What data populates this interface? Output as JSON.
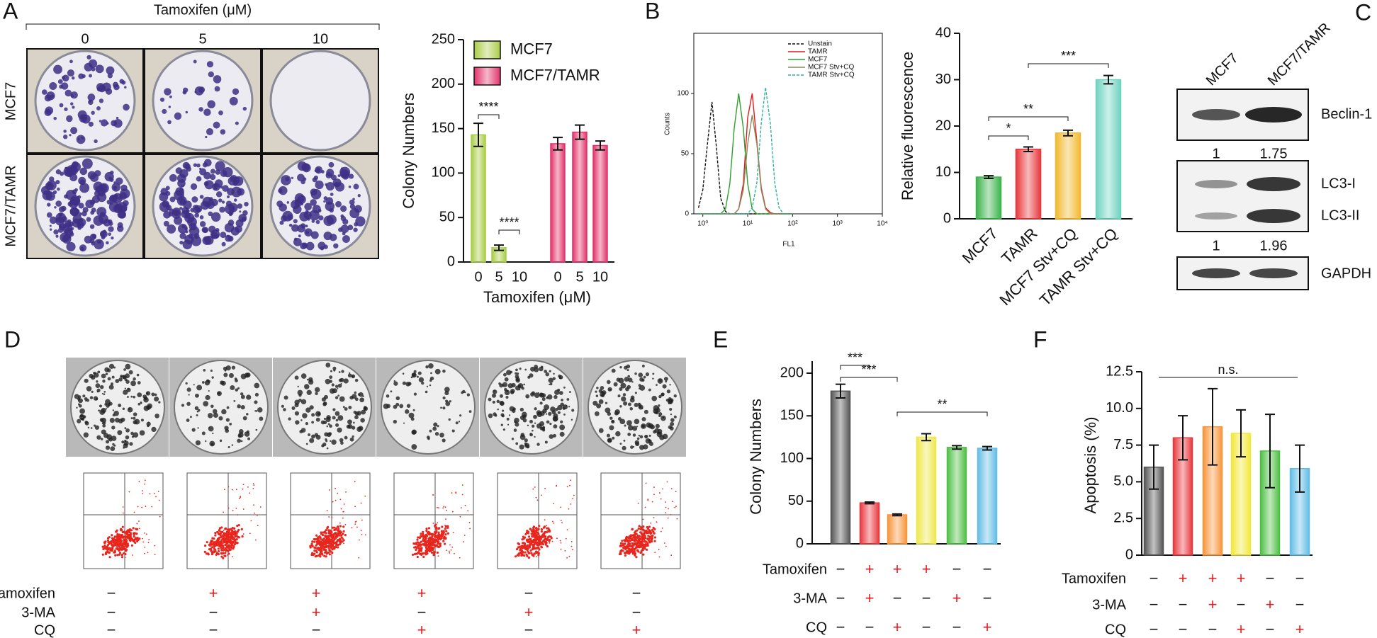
{
  "figure": {
    "panel_labels": [
      "A",
      "B",
      "C",
      "D",
      "E",
      "F"
    ],
    "panel_a": {
      "header": "Tamoxifen (μM)",
      "columns": [
        "0",
        "5",
        "10"
      ],
      "rows": [
        "MCF7",
        "MCF7/TAMR"
      ]
    },
    "panel_c": {
      "columns": [
        "MCF7",
        "MCF7/TAMR"
      ],
      "bands": [
        "Beclin-1",
        "LC3-I",
        "LC3-II",
        "GAPDH"
      ],
      "ratios": [
        [
          "1",
          "1.75"
        ],
        [
          "1",
          "1.96"
        ]
      ]
    },
    "sign_colors": {
      "+": "#e41a1c",
      "−": "#111111"
    },
    "panel_d": {
      "treatments": [
        {
          "name": "Tamoxifen",
          "signs": [
            "−",
            "+",
            "+",
            "+",
            "−",
            "−"
          ]
        },
        {
          "name": "3-MA",
          "signs": [
            "−",
            "−",
            "+",
            "−",
            "+",
            "−"
          ]
        },
        {
          "name": "CQ",
          "signs": [
            "−",
            "−",
            "−",
            "+",
            "−",
            "+"
          ]
        }
      ]
    },
    "panel_e": {
      "treatments": [
        {
          "name": "Tamoxifen",
          "signs": [
            "−",
            "+",
            "+",
            "+",
            "−",
            "−"
          ]
        },
        {
          "name": "3-MA",
          "signs": [
            "−",
            "+",
            "−",
            "−",
            "+",
            "−"
          ]
        },
        {
          "name": "CQ",
          "signs": [
            "−",
            "−",
            "+",
            "−",
            "−",
            "+"
          ]
        }
      ]
    },
    "panel_f": {
      "treatments": [
        {
          "name": "Tamoxifen",
          "signs": [
            "−",
            "+",
            "+",
            "+",
            "−",
            "−"
          ]
        },
        {
          "name": "3-MA",
          "signs": [
            "−",
            "−",
            "+",
            "−",
            "+",
            "−"
          ]
        },
        {
          "name": "CQ",
          "signs": [
            "−",
            "−",
            "−",
            "+",
            "−",
            "+"
          ]
        }
      ]
    }
  },
  "chart_data": [
    {
      "type": "bar",
      "ylabel": "Colony Numbers",
      "xlabel": "Tamoxifen (μM)",
      "categories": [
        "0",
        "5",
        "10"
      ],
      "series": [
        {
          "name": "MCF7",
          "color": "#a9cc45",
          "values": [
            143,
            16,
            0
          ],
          "errors": [
            13,
            3,
            0
          ]
        },
        {
          "name": "MCF7/TAMR",
          "color": "#e2336b",
          "values": [
            133,
            146,
            131
          ],
          "errors": [
            7,
            8,
            5
          ]
        }
      ],
      "ylim": [
        0,
        250
      ],
      "yticks": [
        0,
        50,
        100,
        150,
        200,
        250
      ],
      "legend": "top-left",
      "annotations": [
        {
          "text": "****"
        },
        {
          "text": "****"
        }
      ]
    },
    {
      "type": "line",
      "xlabel": "FL1",
      "ylabel": "Counts",
      "xlog": true,
      "x": [
        0.8,
        1,
        1.25,
        1.6,
        2,
        2.5,
        3.2,
        4,
        5,
        6.3,
        8,
        10,
        12.6,
        16,
        20,
        25,
        32,
        40,
        50,
        63,
        80,
        100
      ],
      "series": [
        {
          "name": "Unstain",
          "color": "#111111",
          "style": "dashed",
          "values": [
            5,
            20,
            56,
            93,
            56,
            13,
            2,
            0,
            0,
            0,
            0,
            0,
            0,
            0,
            0,
            0,
            0,
            0,
            0,
            0,
            0,
            0
          ]
        },
        {
          "name": "TAMR",
          "color": "#e41a1c",
          "style": "solid",
          "values": [
            0,
            0,
            0,
            0,
            0,
            0,
            0,
            0,
            0,
            4,
            25,
            80,
            100,
            60,
            22,
            5,
            1,
            0,
            0,
            0,
            0,
            0
          ]
        },
        {
          "name": "MCF7",
          "color": "#2ca02c",
          "style": "solid",
          "values": [
            0,
            0,
            0,
            0,
            0,
            0,
            4,
            25,
            71,
            100,
            71,
            25,
            4,
            0,
            0,
            0,
            0,
            0,
            0,
            0,
            0,
            0
          ]
        },
        {
          "name": "MCF7 Stv+CQ",
          "color": "#8a8a5a",
          "style": "solid",
          "values": [
            0,
            0,
            0,
            0,
            0,
            0,
            0,
            0,
            0,
            4,
            20,
            58,
            82,
            58,
            20,
            4,
            0,
            0,
            0,
            0,
            0,
            0
          ]
        },
        {
          "name": "TAMR Stv+CQ",
          "color": "#2fb39a",
          "style": "dashed",
          "values": [
            0,
            0,
            0,
            0,
            0,
            0,
            0,
            0,
            0,
            0,
            0,
            0,
            5,
            26,
            75,
            105,
            75,
            26,
            5,
            0,
            0,
            0
          ]
        }
      ],
      "xlim": [
        0.63,
        10000
      ],
      "xticks": [
        {
          "value": 1,
          "label": "10⁰"
        },
        {
          "value": 10,
          "label": "10¹"
        },
        {
          "value": 100,
          "label": "10²"
        },
        {
          "value": 1000,
          "label": "10³"
        },
        {
          "value": 10000,
          "label": "10⁴"
        }
      ],
      "ylim": [
        0,
        150
      ],
      "yticks": [
        0,
        50,
        100
      ],
      "legend": "top-right"
    },
    {
      "type": "bar",
      "ylabel": "Relative fluorescence",
      "categories": [
        "MCF7",
        "TAMR",
        "MCF7 Stv+CQ",
        "TAMR Stv+CQ"
      ],
      "values": [
        9,
        15,
        18.5,
        30
      ],
      "errors": [
        0.3,
        0.5,
        0.6,
        0.9
      ],
      "colors": [
        "#3cb34a",
        "#e8383d",
        "#f2b92e",
        "#6fd3bf"
      ],
      "ylim": [
        0,
        40
      ],
      "yticks": [
        0,
        10,
        20,
        30,
        40
      ],
      "annotations": [
        {
          "text": "*"
        },
        {
          "text": "**"
        },
        {
          "text": "***"
        }
      ]
    },
    {
      "type": "bar",
      "ylabel": "Colony Numbers",
      "categories": [
        null,
        null,
        null,
        null,
        null,
        null
      ],
      "values": [
        179,
        48,
        34,
        125,
        113,
        112
      ],
      "errors": [
        8,
        1,
        1,
        4,
        2,
        2
      ],
      "colors": [
        "#555555",
        "#e8383d",
        "#f7953a",
        "#eee84a",
        "#4fbf45",
        "#62bde6"
      ],
      "ylim": [
        0,
        200
      ],
      "yticks": [
        0,
        50,
        100,
        150,
        200
      ],
      "annotations": [
        {
          "text": "***"
        },
        {
          "text": "***"
        },
        {
          "text": "**"
        }
      ]
    },
    {
      "type": "bar",
      "ylabel": "Apoptosis (%)",
      "categories": [
        null,
        null,
        null,
        null,
        null,
        null
      ],
      "values": [
        6.0,
        8.0,
        8.75,
        8.3,
        7.1,
        5.9
      ],
      "errors": [
        1.5,
        1.5,
        2.6,
        1.6,
        2.5,
        1.6
      ],
      "colors": [
        "#555555",
        "#e8383d",
        "#f7953a",
        "#f2e83a",
        "#4fbf45",
        "#62bde6"
      ],
      "ylim": [
        0,
        12.5
      ],
      "yticks": [
        0,
        2.5,
        {
          "value": 5,
          "label": "5.0"
        },
        7.5,
        {
          "value": 10,
          "label": "10.0"
        },
        12.5
      ],
      "annotations": [
        {
          "text": "n.s."
        }
      ]
    }
  ]
}
